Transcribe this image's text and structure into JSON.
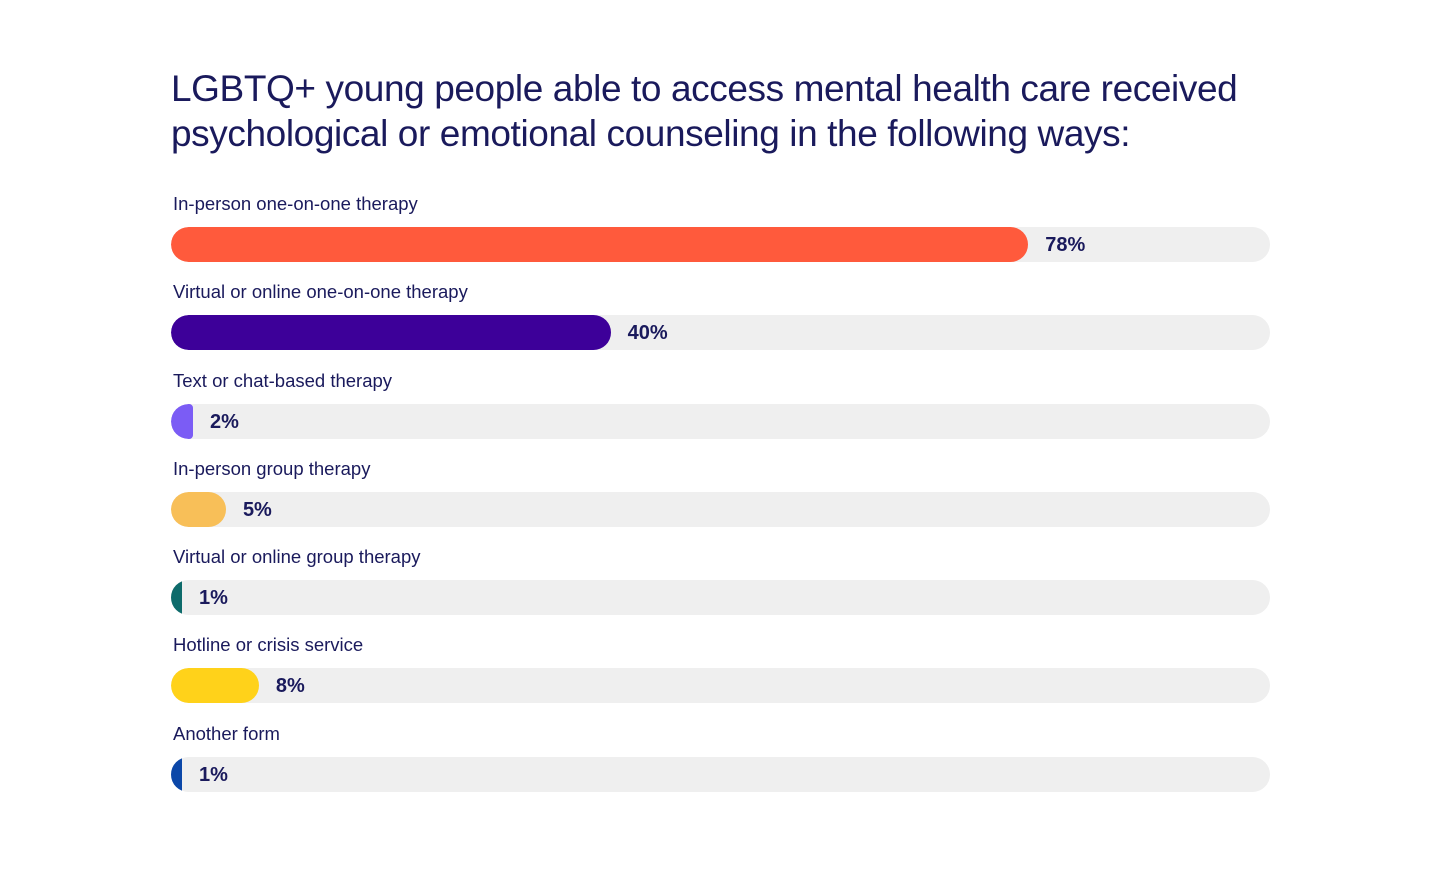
{
  "chart_data": {
    "type": "bar",
    "orientation": "horizontal",
    "title": "LGBTQ+ young people able to access mental health care received psychological or emotional counseling in the following ways:",
    "xlim": [
      0,
      100
    ],
    "grid": false,
    "categories": [
      "In-person one-on-one therapy",
      "Virtual or online one-on-one therapy",
      "Text or chat-based therapy",
      "In-person group therapy",
      "Virtual or online group therapy",
      "Hotline or crisis service",
      "Another form"
    ],
    "values": [
      78,
      40,
      2,
      5,
      1,
      8,
      1
    ],
    "value_labels": [
      "78%",
      "40%",
      "2%",
      "5%",
      "1%",
      "8%",
      "1%"
    ],
    "colors": [
      "#ff5a3c",
      "#3d0099",
      "#7b5cf5",
      "#f8bf58",
      "#0e6b6b",
      "#ffd21a",
      "#0b47a8"
    ],
    "track_color": "#efefef"
  }
}
